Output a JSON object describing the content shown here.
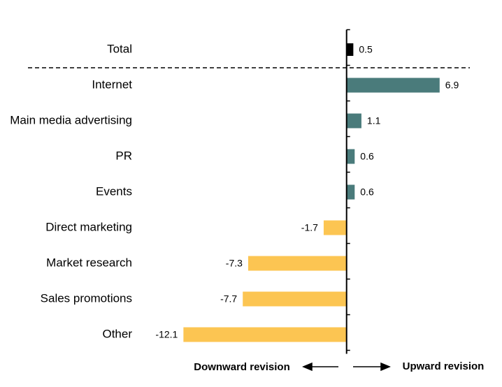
{
  "chart_data": {
    "type": "hbar",
    "categories": [
      "Total",
      "Internet",
      "Main media advertising",
      "PR",
      "Events",
      "Direct marketing",
      "Market research",
      "Sales promotions",
      "Other"
    ],
    "values": [
      0.5,
      6.9,
      1.1,
      0.6,
      0.6,
      -1.7,
      -7.3,
      -7.7,
      -12.1
    ],
    "colors": [
      "#000000",
      "#4a7b7b",
      "#4a7b7b",
      "#4a7b7b",
      "#4a7b7b",
      "#fcc552",
      "#fcc552",
      "#fcc552",
      "#fcc552"
    ],
    "xlim": [
      -13,
      8
    ],
    "annotations": [
      "Downward revision",
      "Upward revision"
    ]
  }
}
